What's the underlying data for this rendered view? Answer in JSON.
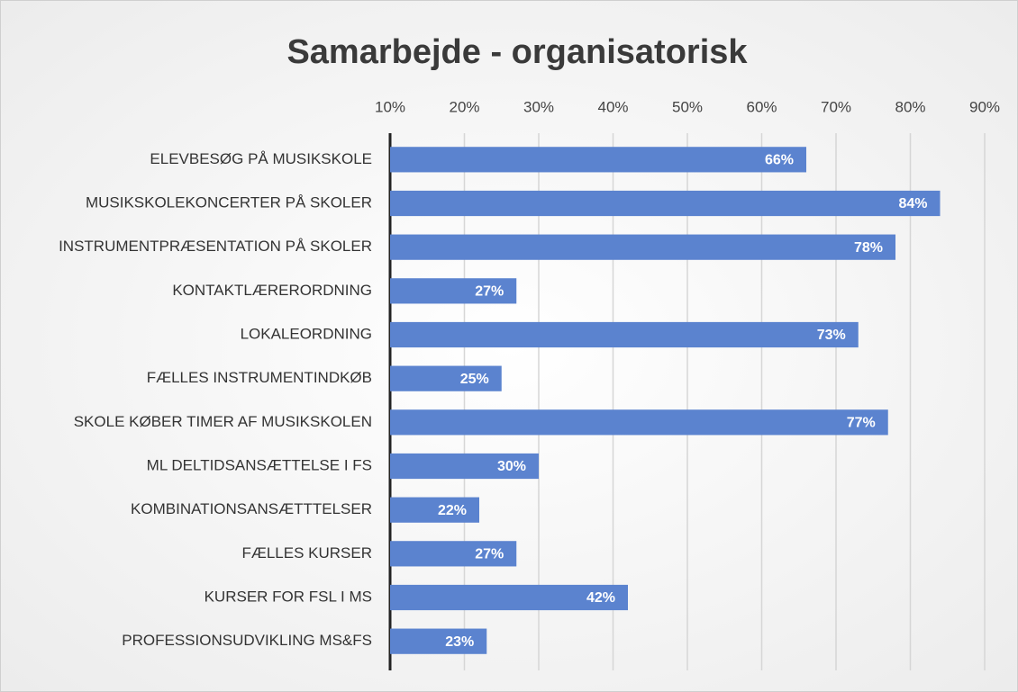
{
  "chart_data": {
    "type": "barh",
    "title": "Samarbejde - organisatorisk",
    "categories": [
      "ELEVBESØG PÅ MUSIKSKOLE",
      "MUSIKSKOLEKONCERTER PÅ SKOLER",
      "INSTRUMENTPRÆSENTATION PÅ SKOLER",
      "KONTAKTLÆRERORDNING",
      "LOKALEORDNING",
      "FÆLLES INSTRUMENTINDKØB",
      "SKOLE KØBER TIMER AF MUSIKSKOLEN",
      "ML DELTIDSANSÆTTELSE I FS",
      "KOMBINATIONSANSÆTTTELSER",
      "FÆLLES KURSER",
      "KURSER FOR FSL I MS",
      "PROFESSIONSUDVIKLING MS&FS"
    ],
    "values": [
      66,
      84,
      78,
      27,
      73,
      25,
      77,
      30,
      22,
      27,
      42,
      23
    ],
    "value_labels": [
      "66%",
      "84%",
      "78%",
      "27%",
      "73%",
      "25%",
      "77%",
      "30%",
      "22%",
      "27%",
      "42%",
      "23%"
    ],
    "color": "#5b83cf",
    "xlim": [
      10,
      90
    ],
    "xticks": [
      {
        "value": 10,
        "label": "10%"
      },
      {
        "value": 20,
        "label": "20%"
      },
      {
        "value": 30,
        "label": "30%"
      },
      {
        "value": 40,
        "label": "40%"
      },
      {
        "value": 50,
        "label": "50%"
      },
      {
        "value": 60,
        "label": "60%"
      },
      {
        "value": 70,
        "label": "70%"
      },
      {
        "value": 80,
        "label": "80%"
      },
      {
        "value": 90,
        "label": "90%"
      }
    ],
    "grid": true
  }
}
